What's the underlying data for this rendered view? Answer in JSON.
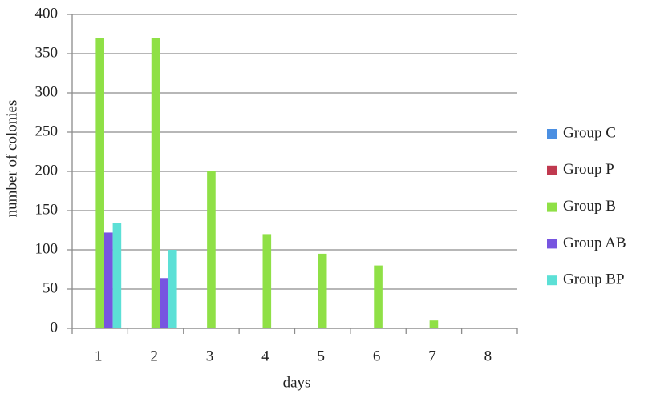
{
  "chart_data": {
    "type": "bar",
    "x_label": "days",
    "y_label": "number of colonies",
    "categories": [
      "1",
      "2",
      "3",
      "4",
      "5",
      "6",
      "7",
      "8"
    ],
    "series": [
      {
        "name": "Group C",
        "color": "#4b8fe2",
        "values": [
          0,
          0,
          0,
          0,
          0,
          0,
          0,
          0
        ]
      },
      {
        "name": "Group P",
        "color": "#c0394f",
        "values": [
          0,
          0,
          0,
          0,
          0,
          0,
          0,
          0
        ]
      },
      {
        "name": "Group B",
        "color": "#8fe046",
        "values": [
          370,
          370,
          200,
          120,
          95,
          80,
          10,
          0
        ]
      },
      {
        "name": "Group AB",
        "color": "#7755e0",
        "values": [
          122,
          64,
          0,
          0,
          0,
          0,
          0,
          0
        ]
      },
      {
        "name": "Group BP",
        "color": "#5ce0d6",
        "values": [
          134,
          100,
          0,
          0,
          0,
          0,
          0,
          0
        ]
      }
    ],
    "ylim": [
      0,
      400
    ],
    "yticks": [
      0,
      50,
      100,
      150,
      200,
      250,
      300,
      350,
      400
    ],
    "grid": true,
    "legend": "right"
  }
}
